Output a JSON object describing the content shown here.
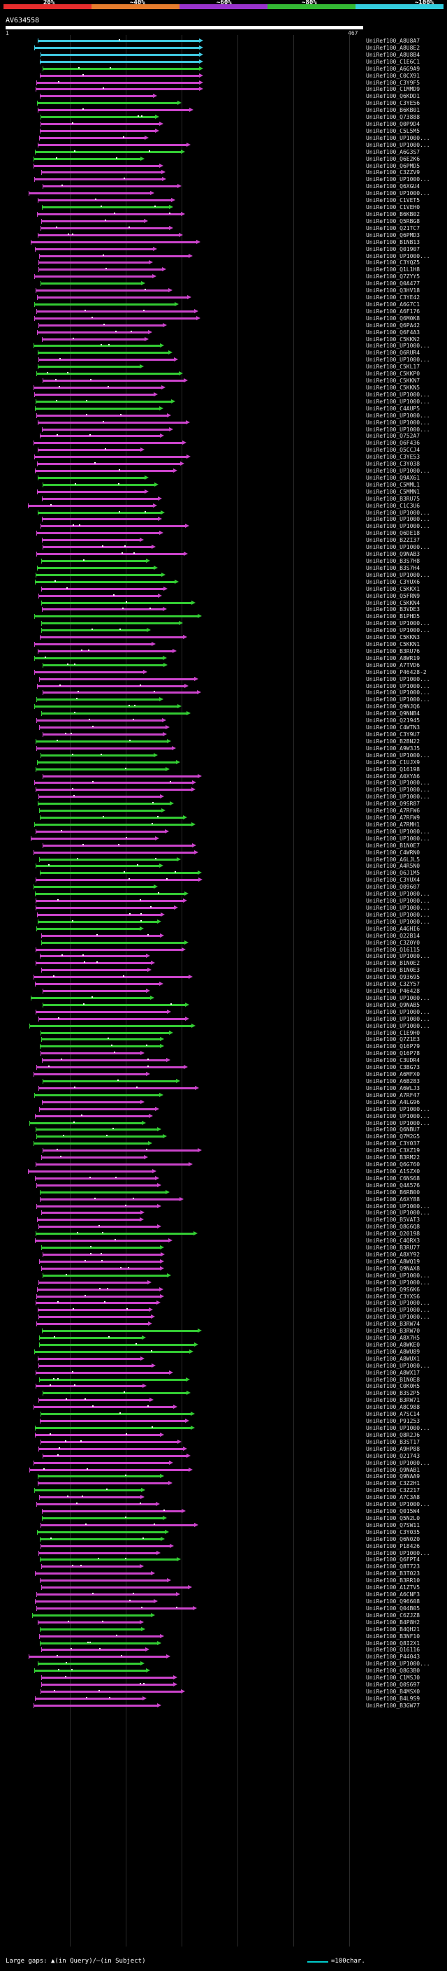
{
  "legend": {
    "labels": [
      "20%",
      "~40%",
      "~60%",
      "~80%",
      "~100%"
    ],
    "colors": [
      "#e52d2d",
      "#e57c2d",
      "#9933cc",
      "#33b833",
      "#33ccdd"
    ]
  },
  "query": {
    "name": "AV634558",
    "start": "1",
    "end": "467"
  },
  "hit_ids": [
    "UniRef100_A8U8A7",
    "UniRef100_A8U8E2",
    "UniRef100_A8U8B4",
    "UniRef100_C1E6C1",
    "UniRef100_A6G9A9",
    "UniRef100_C0CX91",
    "UniRef100_C3Y9F5",
    "UniRef100_C1MMD9",
    "UniRef100_Q6KDD1",
    "UniRef100_C3YE56",
    "UniRef100_B6KB01",
    "UniRef100_Q73888",
    "UniRef100_Q0P9D4",
    "UniRef100_C5L5M5",
    "UniRef100_UP1000...",
    "UniRef100_UP1000...",
    "UniRef100_A6G3S7",
    "UniRef100_Q6E2K6",
    "UniRef100_Q6PMD5",
    "UniRef100_C3ZZV9",
    "UniRef100_UP1000...",
    "UniRef100_Q6XGU4",
    "UniRef100_UP1000...",
    "UniRef100_C1VET5",
    "UniRef100_C1VEH0",
    "UniRef100_B6KB02",
    "UniRef100_Q5RBG8",
    "UniRef100_Q21TC7",
    "UniRef100_Q6PMD3",
    "UniRef100_B1NB13",
    "UniRef100_Q01907",
    "UniRef100_UP1000...",
    "UniRef100_C3YQZ5",
    "UniRef100_Q1L1H8",
    "UniRef100_Q7ZYY5",
    "UniRef100_Q0A477",
    "UniRef100_Q3HV18",
    "UniRef100_C3YE42",
    "UniRef100_A6G7C1",
    "UniRef100_A6F176",
    "UniRef100_Q6M0K8",
    "UniRef100_Q6PA42",
    "UniRef100_Q6F4A3",
    "UniRef100_C5KKN2",
    "UniRef100_UP1000...",
    "UniRef100_Q6RUR4",
    "UniRef100_UP1000...",
    "UniRef100_C5KL17",
    "UniRef100_C5KKP0",
    "UniRef100_C5KKN7",
    "UniRef100_C5KKN5",
    "UniRef100_UP1000...",
    "UniRef100_UP1000...",
    "UniRef100_C4AUP5",
    "UniRef100_UP1000...",
    "UniRef100_UP1000...",
    "UniRef100_UP1000...",
    "UniRef100_Q752A7",
    "UniRef100_Q6F436",
    "UniRef100_Q5CCJ4",
    "UniRef100_C3YE53",
    "UniRef100_C3Y038",
    "UniRef100_UP1000...",
    "UniRef100_Q9AX61",
    "UniRef100_C5MML1",
    "UniRef100_C5MMN1",
    "UniRef100_B3RU75",
    "UniRef100_C1C3U6",
    "UniRef100_UP1000...",
    "UniRef100_UP1000...",
    "UniRef100_UP1000...",
    "UniRef100_Q6DE18",
    "UniRef100_B2ZI37",
    "UniRef100_UP1000...",
    "UniRef100_Q9NAB3",
    "UniRef100_B3S7H8",
    "UniRef100_B3S7H4",
    "UniRef100_UP1000...",
    "UniRef100_C3YUX6",
    "UniRef100_C5KKX1",
    "UniRef100_Q5FRN9",
    "UniRef100_C5KKN4",
    "UniRef100_B3VDE3",
    "UniRef100_B1PHD5",
    "UniRef100_UP1000...",
    "UniRef100_UP1000...",
    "UniRef100_C5KKN3",
    "UniRef100_C5KKN1",
    "UniRef100_B3RU76",
    "UniRef100_A8WR19",
    "UniRef100_A7TVD6",
    "UniRef100_P46428-2",
    "UniRef100_UP1000...",
    "UniRef100_UP1000...",
    "UniRef100_UP1000...",
    "UniRef100_UP1000...",
    "UniRef100_Q9NJQ6",
    "UniRef100_Q9NNB4",
    "UniRef100_Q21945",
    "UniRef100_C4WTN3",
    "UniRef100_C3Y9U7",
    "UniRef100_B2BN22",
    "UniRef100_A9W3J5",
    "UniRef100_UP1000...",
    "UniRef100_C1UJX9",
    "UniRef100_Q16198",
    "UniRef100_A0XYA6",
    "UniRef100_UP1000...",
    "UniRef100_UP1000...",
    "UniRef100_UP1000...",
    "UniRef100_Q9SR87",
    "UniRef100_A7RFW6",
    "UniRef100_A7RFW9",
    "UniRef100_A7RMH1",
    "UniRef100_UP1000...",
    "UniRef100_UP1000...",
    "UniRef100_B1N0E7",
    "UniRef100_C4WRN0",
    "UniRef100_A6LJL5",
    "UniRef100_A4R5N0",
    "UniRef100_Q6J1M5",
    "UniRef100_C3YUX4",
    "UniRef100_Q09607",
    "UniRef100_UP1000...",
    "UniRef100_UP1000...",
    "UniRef100_UP1000...",
    "UniRef100_UP1000...",
    "UniRef100_UP1000...",
    "UniRef100_A4GHI6",
    "UniRef100_Q22B14",
    "UniRef100_C3Z0Y0",
    "UniRef100_Q16115",
    "UniRef100_UP1000...",
    "UniRef100_B1N0E2",
    "UniRef100_B1N0E3",
    "UniRef100_Q93695",
    "UniRef100_C3ZY57",
    "UniRef100_P46428",
    "UniRef100_UP1000...",
    "UniRef100_Q9NAB5",
    "UniRef100_UP1000...",
    "UniRef100_UP1000...",
    "UniRef100_UP1000...",
    "UniRef100_C1E9H0",
    "UniRef100_Q7Z1E3",
    "UniRef100_Q16P79",
    "UniRef100_Q16P78",
    "UniRef100_C3UDR4",
    "UniRef100_C3BG73",
    "UniRef100_A6MFX0",
    "UniRef100_A6B283",
    "UniRef100_A6WLJ3",
    "UniRef100_A7RF47",
    "UniRef100_A4LG96",
    "UniRef100_UP1000...",
    "UniRef100_UP1000...",
    "UniRef100_UP1000...",
    "UniRef100_Q6NBU7",
    "UniRef100_Q7M2G5",
    "UniRef100_C3Y037",
    "UniRef100_C3XZ19",
    "UniRef100_B3RM22",
    "UniRef100_Q6G760",
    "UniRef100_A1SZX0",
    "UniRef100_C6NS68",
    "UniRef100_Q4A576",
    "UniRef100_B6RB00",
    "UniRef100_A6XY88",
    "UniRef100_UP1000...",
    "UniRef100_UP1000...",
    "UniRef100_B5VAT3",
    "UniRef100_Q8G6Q8",
    "UniRef100_Q20198",
    "UniRef100_C4QRX3",
    "UniRef100_B3RU77",
    "UniRef100_A8XY92",
    "UniRef100_A8WQ19",
    "UniRef100_Q9NAX8",
    "UniRef100_UP1000...",
    "UniRef100_UP1000...",
    "UniRef100_Q9S6K6",
    "UniRef100_C3YXS6",
    "UniRef100_UP1000...",
    "UniRef100_UP1000...",
    "UniRef100_UP1000...",
    "UniRef100_B3RW74",
    "UniRef100_B3RW70",
    "UniRef100_A8X7H5",
    "UniRef100_A8WKE0",
    "UniRef100_A8WU89",
    "UniRef100_A8WUX1",
    "UniRef100_UP1000...",
    "UniRef100_A8WX17",
    "UniRef100_B1N0E8",
    "UniRef100_C0K0H5",
    "UniRef100_B3S2P5",
    "UniRef100_B3RW71",
    "UniRef100_A8C988",
    "UniRef100_A7SC14",
    "UniRef100_P91253",
    "UniRef100_UP1000...",
    "UniRef100_Q8R2J6",
    "UniRef100_B3ST17",
    "UniRef100_A9HP88",
    "UniRef100_Q21743",
    "UniRef100_UP1000...",
    "UniRef100_Q9NAB1",
    "UniRef100_Q9NAA9",
    "UniRef100_C3Z2H1",
    "UniRef100_C3Z217",
    "UniRef100_A7C3A8",
    "UniRef100_UP1000...",
    "UniRef100_Q015W4",
    "UniRef100_Q5N2L0",
    "UniRef100_Q7SW11",
    "UniRef100_C3Y035",
    "UniRef100_Q6N0Z0",
    "UniRef100_P18426",
    "UniRef100_UP1000...",
    "UniRef100_Q6FPT4",
    "UniRef100_Q8T723",
    "UniRef100_B3T023",
    "UniRef100_B3RR10",
    "UniRef100_A1ZTV5",
    "UniRef100_A6CNF3",
    "UniRef100_Q96608",
    "UniRef100_Q04B05",
    "UniRef100_C6ZJZ8",
    "UniRef100_B4P8H2",
    "UniRef100_B4QH21",
    "UniRef100_B3NF10",
    "UniRef100_Q8I2X1",
    "UniRef100_Q16116",
    "UniRef100_P44043",
    "UniRef100_UP1000...",
    "UniRef100_Q8G3B0",
    "UniRef100_C1MSJ0",
    "UniRef100_Q0S697",
    "UniRef100_B4MSX0",
    "UniRef100_B4L9S9",
    "UniRef100_B3GW77"
  ],
  "footer": {
    "text": "Large gaps: ▲(in Query)/—(in Subject)",
    "scale": "=100char."
  }
}
